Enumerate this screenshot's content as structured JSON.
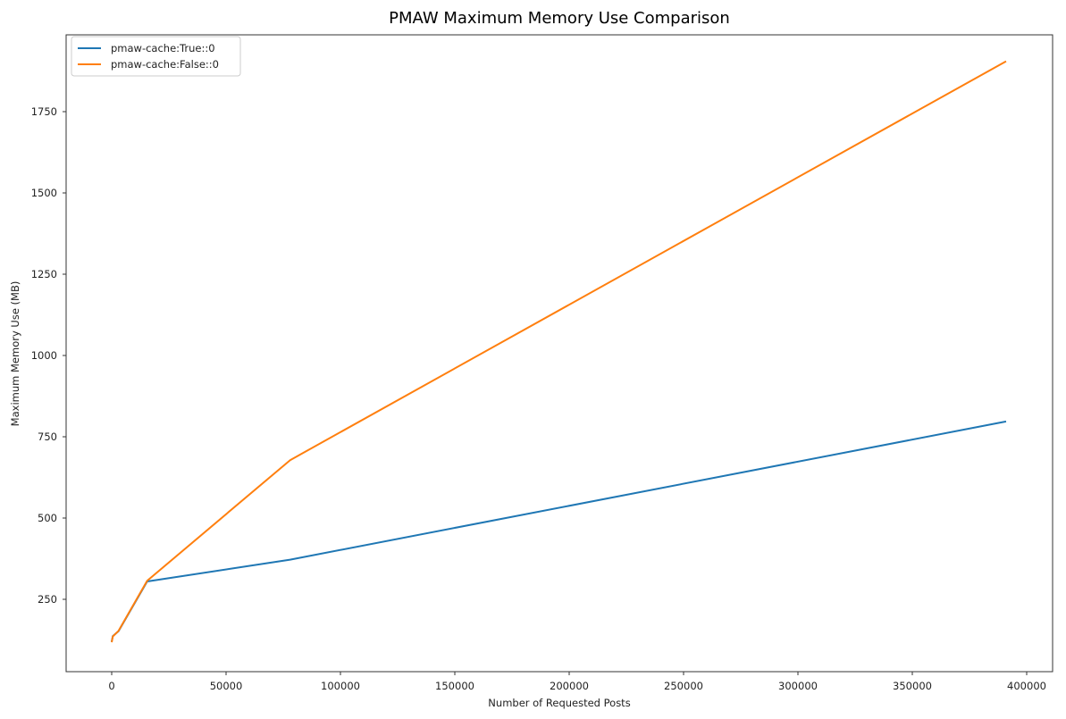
{
  "chart_data": {
    "type": "line",
    "title": "PMAW Maximum Memory Use Comparison",
    "xlabel": "Number of Requested Posts",
    "ylabel": "Maximum Memory Use (MB)",
    "xlim": [
      -19000,
      410000
    ],
    "ylim": [
      55,
      1990
    ],
    "xticks": [
      0,
      50000,
      100000,
      150000,
      200000,
      250000,
      300000,
      350000,
      400000
    ],
    "yticks": [
      250,
      500,
      750,
      1000,
      1250,
      1500,
      1750
    ],
    "grid": false,
    "legend_position": "upper left",
    "series": [
      {
        "name": "pmaw-cache:True::0",
        "color": "#1f77b4",
        "x": [
          0,
          500,
          3000,
          15500,
          78000,
          391000
        ],
        "y": [
          120,
          137,
          152,
          305,
          372,
          797
        ]
      },
      {
        "name": "pmaw-cache:False::0",
        "color": "#ff7f0e",
        "x": [
          0,
          500,
          3000,
          15500,
          78000,
          391000
        ],
        "y": [
          118,
          136,
          153,
          307,
          678,
          1905
        ]
      }
    ]
  }
}
